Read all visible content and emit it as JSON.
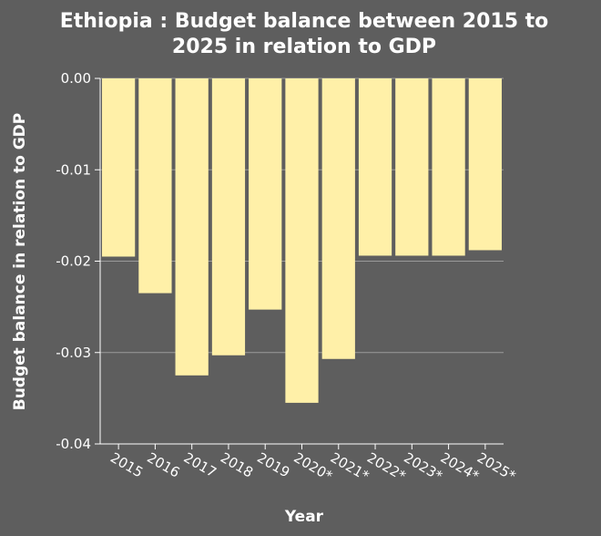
{
  "chart_data": {
    "type": "bar",
    "title_line1": "Ethiopia : Budget balance between 2015 to",
    "title_line2": "2025 in relation to GDP",
    "xlabel": "Year",
    "ylabel": "Budget balance in relation to GDP",
    "categories": [
      "2015",
      "2016",
      "2017",
      "2018",
      "2019",
      "2020*",
      "2021*",
      "2022*",
      "2023*",
      "2024*",
      "2025*"
    ],
    "values": [
      -0.0195,
      -0.0235,
      -0.0325,
      -0.0303,
      -0.0253,
      -0.0355,
      -0.0307,
      -0.0194,
      -0.0194,
      -0.0194,
      -0.0188
    ],
    "ylim": [
      -0.04,
      0.0
    ],
    "yticks": [
      "0.00",
      "-0.01",
      "-0.02",
      "-0.03",
      "-0.04"
    ],
    "grid": true,
    "colors": {
      "bar": "#fff0a8",
      "background": "#5e5e5e",
      "grid": "#9a9a9a",
      "text": "#ffffff"
    }
  }
}
